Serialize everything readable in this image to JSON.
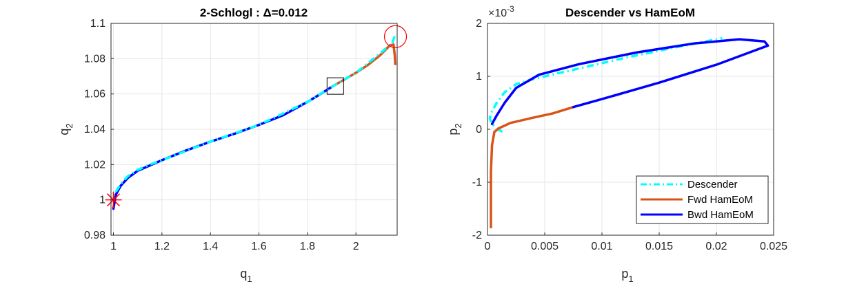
{
  "chart_data": [
    {
      "type": "line",
      "title": "2-Schlogl : Δ=0.012",
      "xlabel": "q",
      "xlabel_sub": "1",
      "ylabel": "q",
      "ylabel_sub": "2",
      "xlim": [
        0.99,
        2.17
      ],
      "ylim": [
        0.98,
        1.1
      ],
      "xticks": [
        1,
        1.2,
        1.4,
        1.6,
        1.8,
        2
      ],
      "xtick_labels": [
        "1",
        "1.2",
        "1.4",
        "1.6",
        "1.8",
        "2"
      ],
      "yticks": [
        0.98,
        1.0,
        1.02,
        1.04,
        1.06,
        1.08,
        1.1
      ],
      "ytick_labels": [
        "0.98",
        "1",
        "1.02",
        "1.04",
        "1.06",
        "1.08",
        "1.1"
      ],
      "grid": true,
      "series": [
        {
          "name": "Bwd HamEoM",
          "color": "#0000ff",
          "style": "solid",
          "x": [
            1.0,
            1.01,
            1.03,
            1.06,
            1.1,
            1.15,
            1.2,
            1.3,
            1.4,
            1.5,
            1.6,
            1.7,
            1.8,
            1.86,
            1.9
          ],
          "y": [
            0.995,
            1.003,
            1.008,
            1.0125,
            1.0165,
            1.0195,
            1.0225,
            1.028,
            1.033,
            1.0375,
            1.0425,
            1.048,
            1.0555,
            1.0605,
            1.064
          ]
        },
        {
          "name": "Fwd HamEoM",
          "color": "#d95319",
          "style": "solid",
          "x": [
            1.9,
            1.95,
            2.0,
            2.05,
            2.1,
            2.14,
            2.155,
            2.16,
            2.162
          ],
          "y": [
            1.064,
            1.068,
            1.072,
            1.0765,
            1.082,
            1.0875,
            1.088,
            1.082,
            1.077
          ]
        },
        {
          "name": "Descender",
          "color": "#00ffff",
          "style": "dashed",
          "x": [
            1.01,
            1.03,
            1.06,
            1.1,
            1.15,
            1.2,
            1.4,
            1.6,
            1.8,
            1.9,
            2.0,
            2.1,
            2.15,
            2.163
          ],
          "y": [
            1.0045,
            1.009,
            1.0135,
            1.017,
            1.02,
            1.0225,
            1.033,
            1.0425,
            1.0555,
            1.064,
            1.072,
            1.083,
            1.089,
            1.094
          ]
        }
      ],
      "markers": [
        {
          "kind": "star",
          "x": 1.0,
          "y": 1.0,
          "color": "#ff0000"
        },
        {
          "kind": "circle",
          "x": 2.163,
          "y": 1.0925,
          "color": "#ff0000"
        },
        {
          "kind": "square",
          "x": 1.915,
          "y": 1.0645,
          "color": "#000000"
        }
      ]
    },
    {
      "type": "line",
      "title": "Descender vs HamEoM",
      "xlabel": "p",
      "xlabel_sub": "1",
      "ylabel": "p",
      "ylabel_sub": "2",
      "xlim": [
        0,
        0.025
      ],
      "ylim": [
        -0.002,
        0.002
      ],
      "xticks": [
        0,
        0.005,
        0.01,
        0.015,
        0.02,
        0.025
      ],
      "xtick_labels": [
        "0",
        "0.005",
        "0.01",
        "0.015",
        "0.02",
        "0.025"
      ],
      "yticks": [
        -0.002,
        -0.001,
        0,
        0.001,
        0.002
      ],
      "ytick_labels": [
        "-2",
        "-1",
        "0",
        "1",
        "2"
      ],
      "y_exponent_base": "×10",
      "y_exponent_power": "-3",
      "grid": true,
      "legend_position": "bottom-right",
      "series": [
        {
          "name": "Descender",
          "color": "#00ffff",
          "style": "dashed",
          "x": [
            0.0013,
            0.0008,
            0.0004,
            0.0002,
            0.0003,
            0.0008,
            0.0015,
            0.0025,
            0.004,
            0.006,
            0.008,
            0.012,
            0.016,
            0.0205
          ],
          "y": [
            -5e-05,
            2e-05,
            0.0001,
            0.0002,
            0.0003,
            0.0005,
            0.0007,
            0.00085,
            0.00095,
            0.00105,
            0.00115,
            0.00135,
            0.00153,
            0.00172
          ]
        },
        {
          "name": "Fwd HamEoM",
          "color": "#d95319",
          "style": "solid",
          "x": [
            0.0003,
            0.0003,
            0.0004,
            0.0006,
            0.001,
            0.002,
            0.004,
            0.0057,
            0.0075
          ],
          "y": [
            -0.00185,
            -0.0008,
            -0.0003,
            -5e-05,
            2e-05,
            0.00012,
            0.00022,
            0.0003,
            0.00042
          ]
        },
        {
          "name": "Bwd HamEoM",
          "color": "#0000ff",
          "style": "solid",
          "x": [
            0.0075,
            0.01,
            0.015,
            0.02,
            0.0235,
            0.0245,
            0.0242,
            0.022,
            0.018,
            0.013,
            0.008,
            0.0045,
            0.0025,
            0.0015,
            0.0008,
            0.0004
          ],
          "y": [
            0.00042,
            0.00057,
            0.00088,
            0.00122,
            0.0015,
            0.00158,
            0.00166,
            0.0017,
            0.00162,
            0.00145,
            0.00123,
            0.00103,
            0.00078,
            0.0005,
            0.00026,
            0.0001
          ]
        }
      ]
    }
  ]
}
